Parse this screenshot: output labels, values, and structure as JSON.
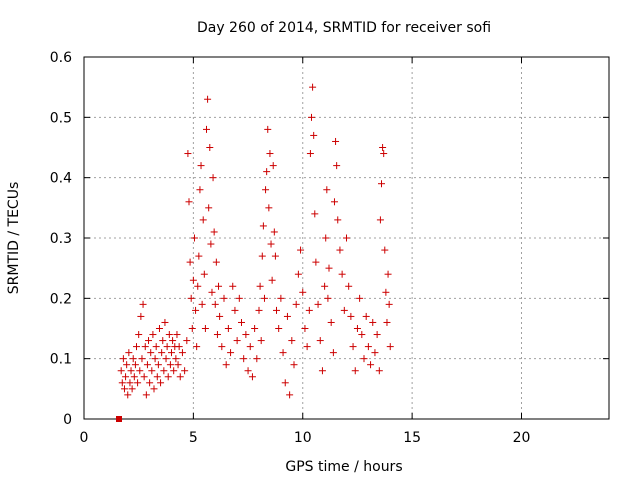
{
  "chart_data": {
    "type": "scatter",
    "title": "Day 260 of 2014, SRMTID for receiver sofi",
    "xlabel": "GPS time / hours",
    "ylabel": "SRMTID / TECUs",
    "xlim": [
      0,
      24
    ],
    "ylim": [
      0,
      0.6
    ],
    "xticks": [
      0,
      5,
      10,
      15,
      20
    ],
    "yticks": [
      0,
      0.1,
      0.2,
      0.3,
      0.4,
      0.5,
      0.6
    ],
    "xtick_labels": [
      "0",
      "5",
      "10",
      "15",
      "20"
    ],
    "ytick_labels": [
      "0",
      "0.1",
      "0.2",
      "0.3",
      "0.4",
      "0.5",
      "0.6"
    ],
    "grid": true,
    "marker": "plus",
    "color": "#cc0000",
    "zero_marker": {
      "x": 1.6,
      "y": 0,
      "marker": "filled-square"
    },
    "series": [
      {
        "name": "SRMTID",
        "points": [
          [
            1.7,
            0.08
          ],
          [
            1.75,
            0.06
          ],
          [
            1.8,
            0.1
          ],
          [
            1.85,
            0.05
          ],
          [
            1.9,
            0.07
          ],
          [
            1.95,
            0.09
          ],
          [
            2.0,
            0.04
          ],
          [
            2.05,
            0.11
          ],
          [
            2.1,
            0.06
          ],
          [
            2.15,
            0.08
          ],
          [
            2.2,
            0.05
          ],
          [
            2.25,
            0.1
          ],
          [
            2.3,
            0.07
          ],
          [
            2.35,
            0.09
          ],
          [
            2.4,
            0.12
          ],
          [
            2.45,
            0.06
          ],
          [
            2.5,
            0.14
          ],
          [
            2.55,
            0.08
          ],
          [
            2.6,
            0.17
          ],
          [
            2.65,
            0.1
          ],
          [
            2.7,
            0.19
          ],
          [
            2.75,
            0.07
          ],
          [
            2.8,
            0.12
          ],
          [
            2.85,
            0.04
          ],
          [
            2.9,
            0.09
          ],
          [
            2.95,
            0.13
          ],
          [
            3.0,
            0.06
          ],
          [
            3.05,
            0.11
          ],
          [
            3.1,
            0.08
          ],
          [
            3.15,
            0.14
          ],
          [
            3.2,
            0.05
          ],
          [
            3.25,
            0.1
          ],
          [
            3.3,
            0.12
          ],
          [
            3.35,
            0.07
          ],
          [
            3.4,
            0.09
          ],
          [
            3.45,
            0.15
          ],
          [
            3.5,
            0.06
          ],
          [
            3.55,
            0.11
          ],
          [
            3.6,
            0.13
          ],
          [
            3.65,
            0.08
          ],
          [
            3.7,
            0.16
          ],
          [
            3.75,
            0.1
          ],
          [
            3.8,
            0.12
          ],
          [
            3.85,
            0.07
          ],
          [
            3.9,
            0.14
          ],
          [
            3.95,
            0.09
          ],
          [
            4.0,
            0.11
          ],
          [
            4.05,
            0.13
          ],
          [
            4.1,
            0.08
          ],
          [
            4.15,
            0.12
          ],
          [
            4.2,
            0.1
          ],
          [
            4.25,
            0.14
          ],
          [
            4.3,
            0.09
          ],
          [
            4.35,
            0.12
          ],
          [
            4.4,
            0.07
          ],
          [
            4.5,
            0.11
          ],
          [
            4.6,
            0.08
          ],
          [
            4.7,
            0.13
          ],
          [
            4.75,
            0.44
          ],
          [
            4.8,
            0.36
          ],
          [
            4.85,
            0.26
          ],
          [
            4.9,
            0.2
          ],
          [
            4.95,
            0.15
          ],
          [
            5.0,
            0.23
          ],
          [
            5.05,
            0.3
          ],
          [
            5.1,
            0.18
          ],
          [
            5.15,
            0.12
          ],
          [
            5.2,
            0.22
          ],
          [
            5.25,
            0.27
          ],
          [
            5.3,
            0.38
          ],
          [
            5.35,
            0.42
          ],
          [
            5.4,
            0.19
          ],
          [
            5.45,
            0.33
          ],
          [
            5.5,
            0.24
          ],
          [
            5.55,
            0.15
          ],
          [
            5.6,
            0.48
          ],
          [
            5.65,
            0.53
          ],
          [
            5.7,
            0.35
          ],
          [
            5.75,
            0.45
          ],
          [
            5.8,
            0.29
          ],
          [
            5.85,
            0.21
          ],
          [
            5.9,
            0.4
          ],
          [
            5.95,
            0.31
          ],
          [
            6.0,
            0.19
          ],
          [
            6.05,
            0.26
          ],
          [
            6.1,
            0.14
          ],
          [
            6.15,
            0.22
          ],
          [
            6.2,
            0.17
          ],
          [
            6.3,
            0.12
          ],
          [
            6.4,
            0.2
          ],
          [
            6.5,
            0.09
          ],
          [
            6.6,
            0.15
          ],
          [
            6.7,
            0.11
          ],
          [
            6.8,
            0.22
          ],
          [
            6.9,
            0.18
          ],
          [
            7.0,
            0.13
          ],
          [
            7.1,
            0.2
          ],
          [
            7.2,
            0.16
          ],
          [
            7.3,
            0.1
          ],
          [
            7.4,
            0.14
          ],
          [
            7.5,
            0.08
          ],
          [
            7.6,
            0.12
          ],
          [
            7.7,
            0.07
          ],
          [
            7.8,
            0.15
          ],
          [
            7.9,
            0.1
          ],
          [
            8.0,
            0.18
          ],
          [
            8.05,
            0.22
          ],
          [
            8.1,
            0.13
          ],
          [
            8.15,
            0.27
          ],
          [
            8.2,
            0.32
          ],
          [
            8.25,
            0.2
          ],
          [
            8.3,
            0.38
          ],
          [
            8.35,
            0.41
          ],
          [
            8.4,
            0.48
          ],
          [
            8.45,
            0.35
          ],
          [
            8.5,
            0.44
          ],
          [
            8.55,
            0.29
          ],
          [
            8.6,
            0.23
          ],
          [
            8.65,
            0.42
          ],
          [
            8.7,
            0.31
          ],
          [
            8.75,
            0.27
          ],
          [
            8.8,
            0.18
          ],
          [
            8.9,
            0.15
          ],
          [
            9.0,
            0.2
          ],
          [
            9.1,
            0.11
          ],
          [
            9.2,
            0.06
          ],
          [
            9.3,
            0.17
          ],
          [
            9.4,
            0.04
          ],
          [
            9.5,
            0.13
          ],
          [
            9.6,
            0.09
          ],
          [
            9.7,
            0.19
          ],
          [
            9.8,
            0.24
          ],
          [
            9.9,
            0.28
          ],
          [
            10.0,
            0.21
          ],
          [
            10.1,
            0.15
          ],
          [
            10.2,
            0.12
          ],
          [
            10.3,
            0.18
          ],
          [
            10.35,
            0.44
          ],
          [
            10.4,
            0.5
          ],
          [
            10.45,
            0.55
          ],
          [
            10.5,
            0.47
          ],
          [
            10.55,
            0.34
          ],
          [
            10.6,
            0.26
          ],
          [
            10.7,
            0.19
          ],
          [
            10.8,
            0.13
          ],
          [
            10.9,
            0.08
          ],
          [
            11.0,
            0.22
          ],
          [
            11.05,
            0.3
          ],
          [
            11.1,
            0.38
          ],
          [
            11.15,
            0.2
          ],
          [
            11.2,
            0.25
          ],
          [
            11.3,
            0.16
          ],
          [
            11.4,
            0.11
          ],
          [
            11.45,
            0.36
          ],
          [
            11.5,
            0.46
          ],
          [
            11.55,
            0.42
          ],
          [
            11.6,
            0.33
          ],
          [
            11.7,
            0.28
          ],
          [
            11.8,
            0.24
          ],
          [
            11.9,
            0.18
          ],
          [
            12.0,
            0.3
          ],
          [
            12.1,
            0.22
          ],
          [
            12.2,
            0.17
          ],
          [
            12.3,
            0.12
          ],
          [
            12.4,
            0.08
          ],
          [
            12.5,
            0.15
          ],
          [
            12.6,
            0.2
          ],
          [
            12.7,
            0.14
          ],
          [
            12.8,
            0.1
          ],
          [
            12.9,
            0.17
          ],
          [
            13.0,
            0.12
          ],
          [
            13.1,
            0.09
          ],
          [
            13.2,
            0.16
          ],
          [
            13.3,
            0.11
          ],
          [
            13.4,
            0.14
          ],
          [
            13.5,
            0.08
          ],
          [
            13.55,
            0.33
          ],
          [
            13.6,
            0.39
          ],
          [
            13.65,
            0.45
          ],
          [
            13.7,
            0.44
          ],
          [
            13.75,
            0.28
          ],
          [
            13.8,
            0.21
          ],
          [
            13.85,
            0.16
          ],
          [
            13.9,
            0.24
          ],
          [
            13.95,
            0.19
          ],
          [
            14.0,
            0.12
          ]
        ]
      }
    ]
  }
}
